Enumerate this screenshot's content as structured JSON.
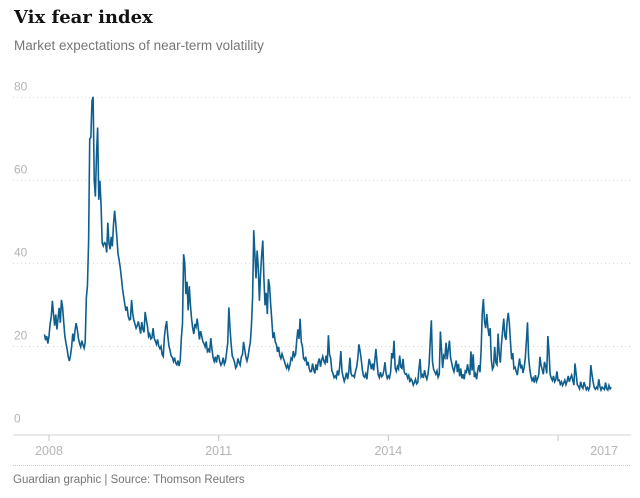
{
  "header": {
    "title": "Vix fear index",
    "subtitle": "Market expectations of near-term volatility"
  },
  "footer": {
    "text": "Guardian graphic | Source: Thomson Reuters"
  },
  "colors": {
    "line": "#0e5e8e",
    "grid": "#d5d5d5",
    "axis": "#d5d5d5",
    "tick": "#c4c4c4",
    "axis_label": "#b5b5b5"
  },
  "chart_data": {
    "type": "line",
    "title": "Vix fear index",
    "subtitle": "Market expectations of near-term volatility",
    "source": "Thomson Reuters",
    "grid": "dotted horizontal",
    "legend": "none",
    "xlim": [
      2007.9,
      2018.0
    ],
    "ylim": [
      0,
      80
    ],
    "x_ticks": [
      2008,
      2011,
      2014,
      2017
    ],
    "x_tick_labels": [
      "2008",
      "2011",
      "2014",
      "2017"
    ],
    "y_ticks": [
      0,
      20,
      40,
      60,
      80
    ],
    "y_tick_labels": [
      "0",
      "20",
      "40",
      "60",
      "80"
    ],
    "series": [
      {
        "name": "VIX",
        "x_start": 2007.92,
        "x_step": 0.02,
        "values": [
          22.9,
          21.5,
          22.5,
          20.7,
          22.5,
          25.4,
          27.2,
          31.0,
          27.8,
          25.0,
          27.7,
          24.1,
          26.8,
          29.3,
          25.7,
          31.2,
          29.4,
          25.9,
          22.5,
          20.8,
          19.4,
          17.5,
          16.5,
          17.8,
          19.9,
          23.1,
          21.2,
          23.9,
          25.6,
          24.1,
          22.0,
          20.7,
          19.9,
          21.4,
          20.4,
          19.6,
          21.0,
          31.7,
          34.7,
          45.1,
          70.0,
          70.3,
          79.1,
          80.1,
          60.0,
          56.1,
          66.3,
          72.7,
          55.3,
          59.9,
          54.3,
          44.9,
          44.2,
          45.0,
          44.8,
          42.6,
          49.8,
          44.9,
          43.4,
          46.4,
          44.1,
          49.3,
          52.7,
          49.7,
          46.3,
          42.3,
          40.8,
          38.9,
          36.5,
          33.9,
          32.0,
          30.2,
          28.6,
          29.6,
          27.3,
          26.4,
          26.5,
          31.2,
          28.0,
          26.3,
          25.4,
          24.4,
          25.0,
          26.0,
          24.6,
          23.1,
          25.9,
          24.1,
          23.4,
          28.3,
          26.5,
          24.9,
          22.4,
          23.0,
          21.8,
          22.1,
          24.4,
          22.0,
          21.3,
          20.5,
          21.7,
          20.1,
          19.5,
          20.0,
          18.1,
          17.6,
          22.3,
          24.6,
          26.1,
          22.6,
          20.1,
          19.1,
          17.7,
          17.4,
          16.4,
          17.3,
          16.0,
          15.6,
          16.6,
          15.3,
          16.6,
          22.1,
          25.4,
          42.2,
          40.1,
          32.6,
          35.6,
          28.7,
          34.5,
          30.1,
          26.8,
          24.5,
          23.0,
          25.4,
          24.7,
          26.7,
          24.3,
          21.7,
          23.7,
          22.5,
          21.2,
          20.7,
          19.9,
          21.2,
          18.8,
          19.3,
          18.5,
          22.0,
          19.5,
          17.4,
          16.4,
          17.5,
          16.1,
          17.8,
          17.7,
          16.3,
          15.5,
          16.0,
          17.3,
          15.7,
          16.4,
          18.6,
          20.8,
          29.4,
          24.4,
          20.6,
          17.7,
          17.1,
          16.2,
          14.8,
          15.3,
          17.1,
          16.1,
          15.5,
          17.5,
          18.0,
          21.1,
          19.3,
          17.5,
          16.5,
          17.6,
          19.5,
          21.0,
          25.2,
          32.0,
          48.0,
          42.1,
          36.4,
          43.1,
          39.0,
          31.0,
          37.3,
          42.0,
          45.5,
          36.2,
          29.9,
          32.9,
          27.8,
          36.2,
          34.5,
          30.0,
          26.2,
          22.0,
          23.4,
          21.1,
          20.5,
          18.7,
          19.9,
          17.8,
          17.1,
          18.2,
          17.3,
          16.5,
          15.6,
          14.8,
          15.6,
          14.5,
          15.5,
          17.2,
          16.8,
          18.9,
          17.6,
          18.1,
          21.5,
          24.1,
          21.8,
          26.7,
          21.1,
          20.1,
          17.1,
          16.7,
          17.5,
          15.4,
          16.3,
          14.7,
          13.9,
          14.0,
          15.9,
          14.4,
          13.5,
          15.7,
          14.3,
          16.3,
          17.1,
          15.1,
          16.7,
          17.6,
          16.4,
          15.9,
          17.8,
          16.0,
          22.7,
          18.0,
          17.2,
          14.2,
          13.5,
          12.5,
          12.9,
          12.4,
          14.2,
          13.0,
          15.2,
          18.9,
          14.0,
          12.7,
          11.6,
          12.5,
          13.7,
          12.1,
          13.9,
          17.3,
          13.5,
          12.9,
          13.0,
          12.6,
          14.1,
          15.1,
          17.2,
          20.5,
          18.9,
          16.9,
          14.4,
          12.9,
          12.6,
          13.4,
          12.1,
          14.7,
          17.0,
          15.9,
          14.5,
          15.9,
          14.2,
          16.6,
          19.4,
          16.1,
          13.2,
          12.5,
          13.8,
          12.7,
          13.0,
          14.2,
          16.2,
          13.5,
          12.3,
          12.9,
          12.4,
          13.8,
          18.4,
          17.1,
          21.4,
          14.8,
          14.0,
          15.2,
          14.6,
          17.8,
          15.0,
          14.7,
          17.0,
          13.9,
          13.3,
          13.4,
          12.4,
          13.0,
          11.4,
          12.2,
          11.7,
          10.7,
          11.3,
          12.1,
          11.0,
          11.3,
          14.5,
          17.0,
          12.7,
          13.2,
          12.4,
          14.3,
          12.9,
          12.1,
          13.3,
          15.6,
          21.2,
          26.3,
          16.3,
          14.5,
          13.9,
          13.3,
          14.1,
          12.6,
          13.3,
          23.6,
          19.2,
          14.8,
          17.8,
          17.3,
          20.9,
          16.9,
          19.2,
          21.4,
          17.3,
          16.0,
          14.7,
          13.9,
          15.3,
          16.6,
          13.8,
          15.8,
          12.8,
          14.7,
          12.3,
          13.3,
          12.1,
          14.1,
          13.8,
          15.7,
          14.0,
          13.1,
          18.8,
          14.2,
          18.1,
          12.6,
          13.4,
          12.1,
          14.3,
          15.5,
          13.8,
          19.1,
          28.0,
          31.4,
          26.1,
          24.4,
          27.8,
          24.5,
          22.5,
          24.4,
          16.8,
          14.5,
          15.1,
          19.9,
          16.1,
          15.6,
          23.1,
          18.2,
          16.1,
          20.7,
          23.7,
          26.7,
          22.5,
          21.6,
          26.0,
          28.1,
          25.4,
          20.9,
          16.9,
          18.4,
          14.7,
          15.0,
          14.0,
          13.1,
          15.3,
          17.1,
          14.7,
          15.6,
          13.6,
          14.9,
          17.0,
          21.2,
          25.8,
          17.3,
          14.6,
          12.8,
          11.8,
          12.4,
          11.3,
          13.1,
          11.6,
          12.3,
          13.3,
          17.5,
          15.4,
          14.5,
          13.3,
          16.3,
          15.3,
          13.5,
          22.5,
          18.7,
          13.3,
          12.4,
          11.8,
          12.9,
          11.5,
          12.0,
          14.0,
          11.8,
          11.9,
          10.9,
          11.5,
          10.6,
          11.2,
          11.9,
          10.8,
          11.6,
          12.9,
          11.5,
          12.4,
          13.1,
          11.9,
          10.7,
          15.9,
          13.4,
          10.8,
          10.4,
          9.8,
          11.5,
          10.3,
          9.9,
          11.4,
          10.5,
          9.6,
          10.1,
          9.5,
          10.3,
          15.5,
          13.2,
          11.5,
          10.1,
          9.7,
          10.2,
          9.8,
          12.1,
          10.4,
          9.5,
          10.2,
          9.9,
          9.6,
          11.3,
          9.8,
          9.5,
          10.6,
          9.8,
          10.2
        ]
      }
    ]
  }
}
